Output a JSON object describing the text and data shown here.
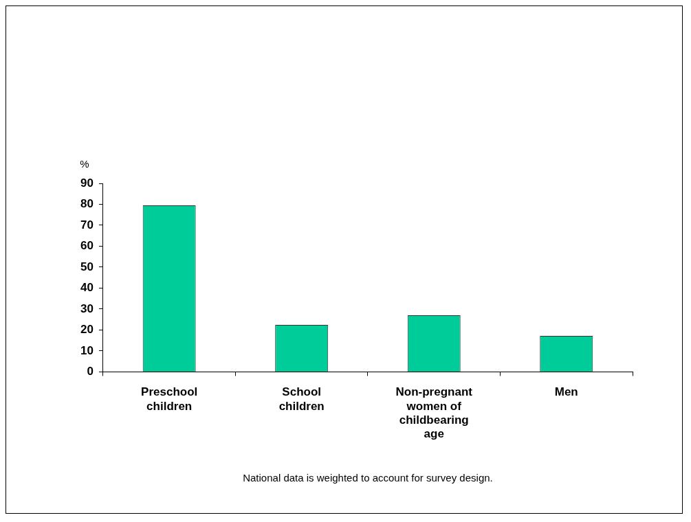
{
  "chart_data": {
    "type": "bar",
    "ylabel": "%",
    "categories": [
      "Preschool children",
      "School children",
      "Non-pregnant women of childbearing age",
      "Men"
    ],
    "values": [
      79.5,
      22.4,
      27,
      17.2
    ],
    "color": "#00cc99",
    "ylim": [
      0,
      90
    ],
    "yticks": [
      0,
      10,
      20,
      30,
      40,
      50,
      60,
      70,
      80,
      90
    ],
    "grid": false,
    "legend": false,
    "annotations": [
      "National data is weighted to account for survey design."
    ]
  }
}
